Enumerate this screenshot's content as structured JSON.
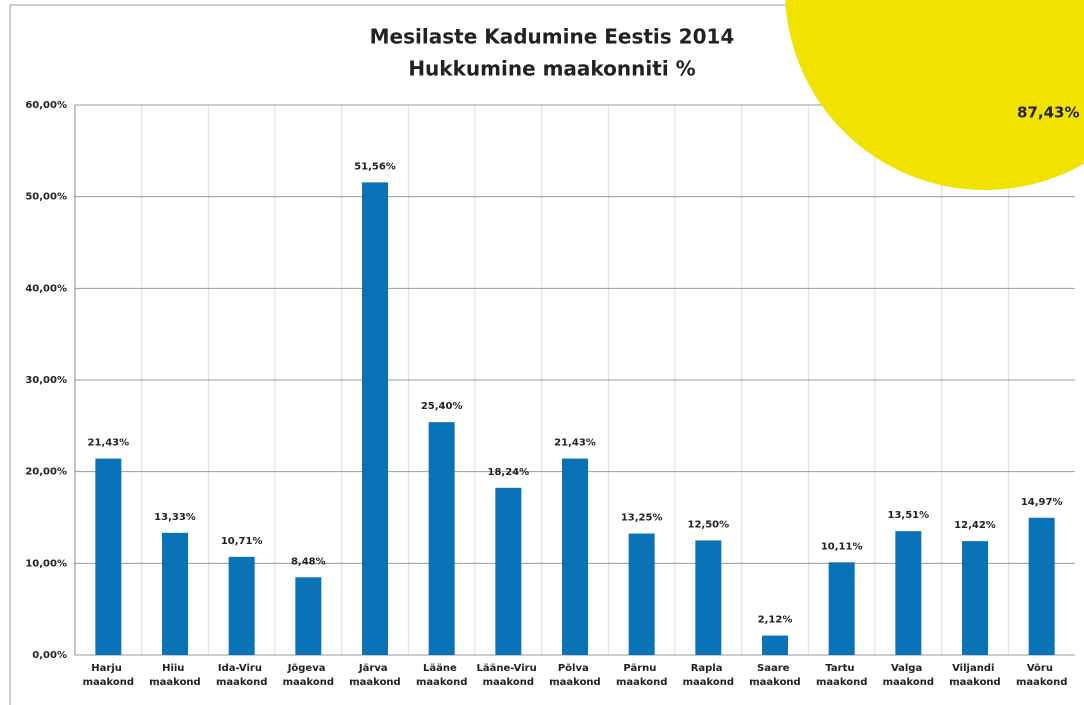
{
  "chart_data": {
    "type": "bar",
    "title": "Mesilaste Kadumine Eestis 2014",
    "subtitle": "Hukkumine maakonniti %",
    "categories": [
      "Harju maakond",
      "Hiiu maakond",
      "Ida-Viru maakond",
      "Jõgeva maakond",
      "Järva maakond",
      "Lääne maakond",
      "Lääne-Viru maakond",
      "Põlva maakond",
      "Pärnu maakond",
      "Rapla maakond",
      "Saare maakond",
      "Tartu maakond",
      "Valga maakond",
      "Viljandi maakond",
      "Võru maakond"
    ],
    "values": [
      21.43,
      13.33,
      10.71,
      8.48,
      51.56,
      25.4,
      18.24,
      21.43,
      13.25,
      12.5,
      2.12,
      10.11,
      13.51,
      12.42,
      14.97
    ],
    "value_labels": [
      "21,43%",
      "13,33%",
      "10,71%",
      "8,48%",
      "51,56%",
      "25,40%",
      "18,24%",
      "21,43%",
      "13,25%",
      "12,50%",
      "2,12%",
      "10,11%",
      "13,51%",
      "12,42%",
      "14,97%"
    ],
    "color": "#0a73b8",
    "ylim": [
      0,
      60
    ],
    "yticks": [
      {
        "value": 0,
        "label": "0,00%"
      },
      {
        "value": 10,
        "label": "10,00%"
      },
      {
        "value": 20,
        "label": "20,00%"
      },
      {
        "value": 30,
        "label": "30,00%"
      },
      {
        "value": 40,
        "label": "40,00%"
      },
      {
        "value": 50,
        "label": "50,00%"
      },
      {
        "value": 60,
        "label": "60,00%"
      }
    ],
    "grid": true,
    "annotations": [
      "87,43%"
    ]
  }
}
